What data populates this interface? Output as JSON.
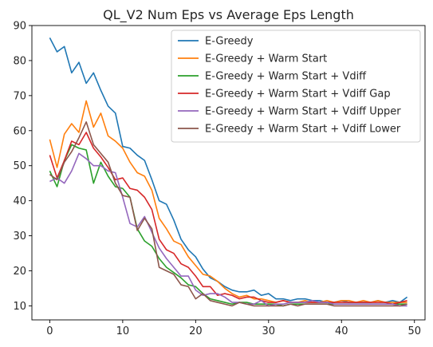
{
  "chart_data": {
    "type": "line",
    "title": "QL_V2 Num Eps vs Average Eps Length",
    "xlabel": "",
    "ylabel": "",
    "xlim": [
      -2.45,
      51.45
    ],
    "ylim": [
      6,
      90
    ],
    "xticks": [
      0,
      10,
      20,
      30,
      40,
      50
    ],
    "yticks": [
      10,
      20,
      30,
      40,
      50,
      60,
      70,
      80,
      90
    ],
    "grid": false,
    "legend_position": "top-right",
    "x": [
      0,
      1,
      2,
      3,
      4,
      5,
      6,
      7,
      8,
      9,
      10,
      11,
      12,
      13,
      14,
      15,
      16,
      17,
      18,
      19,
      20,
      21,
      22,
      23,
      24,
      25,
      26,
      27,
      28,
      29,
      30,
      31,
      32,
      33,
      34,
      35,
      36,
      37,
      38,
      39,
      40,
      41,
      42,
      43,
      44,
      45,
      46,
      47,
      48,
      49
    ],
    "series": [
      {
        "name": "E-Greedy",
        "color": "#1f77b4",
        "values": [
          86.5,
          82.5,
          84,
          76.5,
          79.5,
          73.5,
          76.5,
          71.5,
          67,
          65,
          55.5,
          55,
          53,
          51.5,
          46,
          40,
          39,
          34.5,
          29,
          26,
          24,
          20.5,
          18,
          17,
          15.5,
          14.5,
          14,
          14,
          14.5,
          13,
          13.5,
          12,
          12,
          11.5,
          12,
          12,
          11.5,
          11.5,
          11,
          11,
          11.5,
          11,
          11,
          11,
          11,
          11.5,
          11,
          11.5,
          11,
          12.5
        ]
      },
      {
        "name": "E-Greedy + Warm Start",
        "color": "#ff7f0e",
        "values": [
          57.5,
          49.5,
          59,
          62,
          59.5,
          68.5,
          61,
          65,
          58.5,
          57,
          55,
          51,
          48,
          47,
          43,
          35,
          32,
          28.5,
          27.5,
          24,
          21.5,
          19,
          18.5,
          17,
          15,
          13.5,
          12.5,
          13,
          12,
          12,
          11.5,
          11,
          11.5,
          11,
          11,
          11.5,
          11,
          11,
          11.5,
          11,
          11.5,
          11.5,
          11,
          11.5,
          11,
          11.5,
          11,
          11,
          11,
          11
        ]
      },
      {
        "name": "E-Greedy + Warm Start + Vdiff",
        "color": "#2ca02c",
        "values": [
          48.5,
          44,
          51.5,
          56,
          55,
          54.5,
          45,
          51,
          47,
          44,
          43.5,
          41,
          32,
          28.5,
          27,
          23.5,
          21,
          19.5,
          18,
          16,
          15.5,
          13.5,
          12,
          11.5,
          11,
          10.5,
          11,
          11,
          10.5,
          10.5,
          10.5,
          10.5,
          10,
          10.5,
          10.5,
          10.5,
          10.5,
          10.5,
          10.5,
          10.5,
          10.5,
          10.5,
          10.5,
          10.5,
          10.5,
          10.5,
          10.5,
          10.5,
          10.5,
          10.5
        ]
      },
      {
        "name": "E-Greedy + Warm Start + Vdiff Gap",
        "color": "#d62728",
        "values": [
          53,
          46.5,
          51.5,
          57,
          56,
          59.5,
          55,
          52.5,
          49.5,
          46,
          46.5,
          43.5,
          43,
          41,
          37.5,
          29,
          26,
          25,
          22,
          21,
          18.5,
          15.5,
          15.5,
          13,
          13.5,
          13,
          12,
          12.5,
          12.5,
          11.5,
          11,
          11,
          11.5,
          11,
          11,
          11,
          11,
          11,
          11,
          11,
          11,
          11,
          11,
          11,
          11,
          11,
          11,
          10.5,
          11,
          11.5
        ]
      },
      {
        "name": "E-Greedy + Warm Start + Vdiff Upper",
        "color": "#9467bd",
        "values": [
          45.5,
          46.5,
          45,
          48.5,
          53.5,
          52,
          50,
          50,
          48.5,
          48,
          41,
          33.5,
          32.5,
          35.5,
          31,
          26.5,
          23.5,
          21,
          18.5,
          18.5,
          14.5,
          13,
          13.5,
          13.5,
          12.5,
          11,
          11,
          10.5,
          10.5,
          11.5,
          10,
          10.5,
          10.5,
          11,
          11,
          11,
          11.5,
          11,
          11,
          10.5,
          10.5,
          10.5,
          10.5,
          10.5,
          10.5,
          10.5,
          10.5,
          10.5,
          10,
          10
        ]
      },
      {
        "name": "E-Greedy + Warm Start + Vdiff Lower",
        "color": "#8c564b",
        "values": [
          47.5,
          46,
          51,
          54,
          58,
          62.5,
          56,
          53.5,
          51,
          45,
          41.5,
          41,
          31.5,
          35,
          32,
          21,
          20,
          19,
          16,
          15.5,
          12,
          13.5,
          11.5,
          11,
          10.5,
          10,
          11,
          10.5,
          10,
          10,
          10,
          10,
          10,
          10.5,
          10,
          10.5,
          10.5,
          10.5,
          10.5,
          10,
          10,
          10,
          10,
          10,
          10,
          10,
          10,
          10,
          10,
          10.5
        ]
      }
    ]
  }
}
